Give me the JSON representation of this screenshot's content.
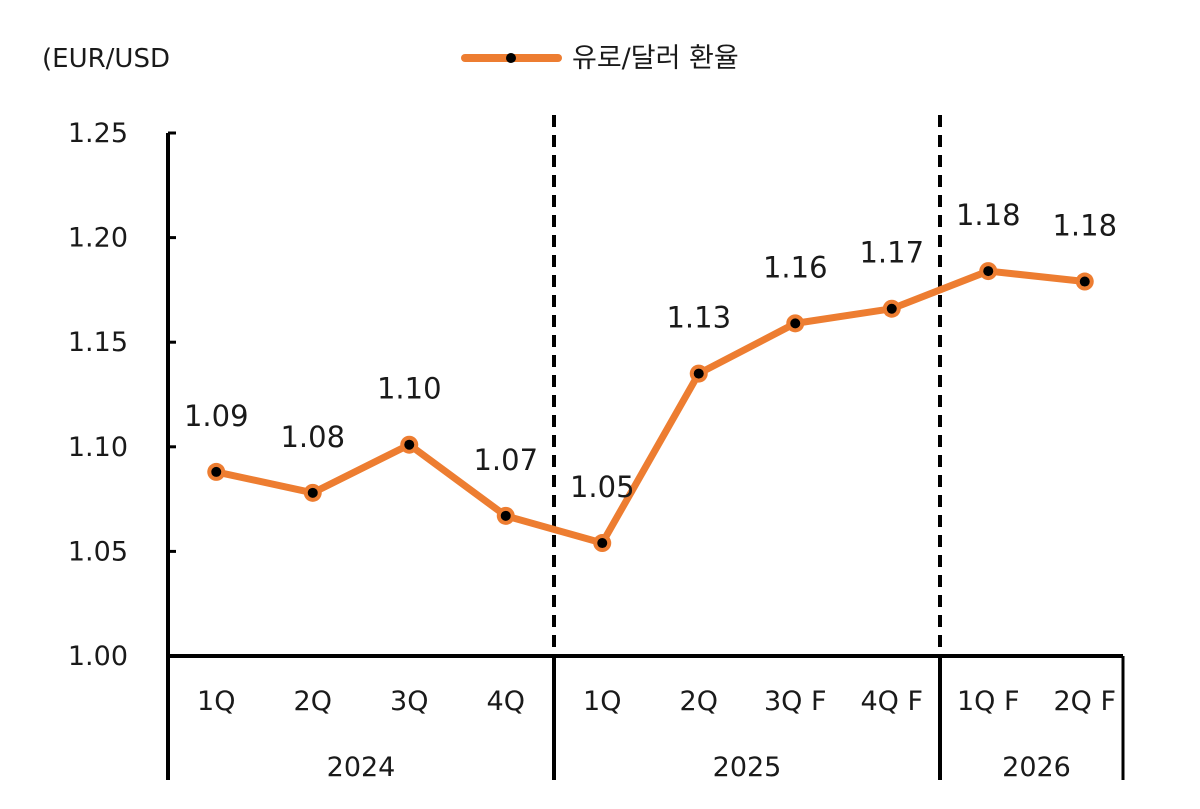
{
  "chart_data": {
    "type": "line",
    "unit_label": "(EUR/USD",
    "series": [
      {
        "name": "유로/달러 환율",
        "values": [
          1.088,
          1.078,
          1.101,
          1.067,
          1.054,
          1.135,
          1.159,
          1.166,
          1.184,
          1.179
        ],
        "data_labels": [
          "1.09",
          "1.08",
          "1.10",
          "1.07",
          "1.05",
          "1.13",
          "1.16",
          "1.17",
          "1.18",
          "1.18"
        ]
      }
    ],
    "categories": [
      "1Q",
      "2Q",
      "3Q",
      "4Q",
      "1Q",
      "2Q",
      "3Q F",
      "4Q F",
      "1Q F",
      "2Q F"
    ],
    "groups": [
      {
        "label": "2024",
        "count": 4
      },
      {
        "label": "2025",
        "count": 4
      },
      {
        "label": "2026",
        "count": 2
      }
    ],
    "ylim": [
      1.0,
      1.25
    ],
    "yticks": [
      "1.00",
      "1.05",
      "1.10",
      "1.15",
      "1.20",
      "1.25"
    ],
    "legend_position": "top-center",
    "grid": false,
    "colors": {
      "line": "#ED7D31",
      "marker_fill": "#000000",
      "axis": "#000000"
    }
  }
}
